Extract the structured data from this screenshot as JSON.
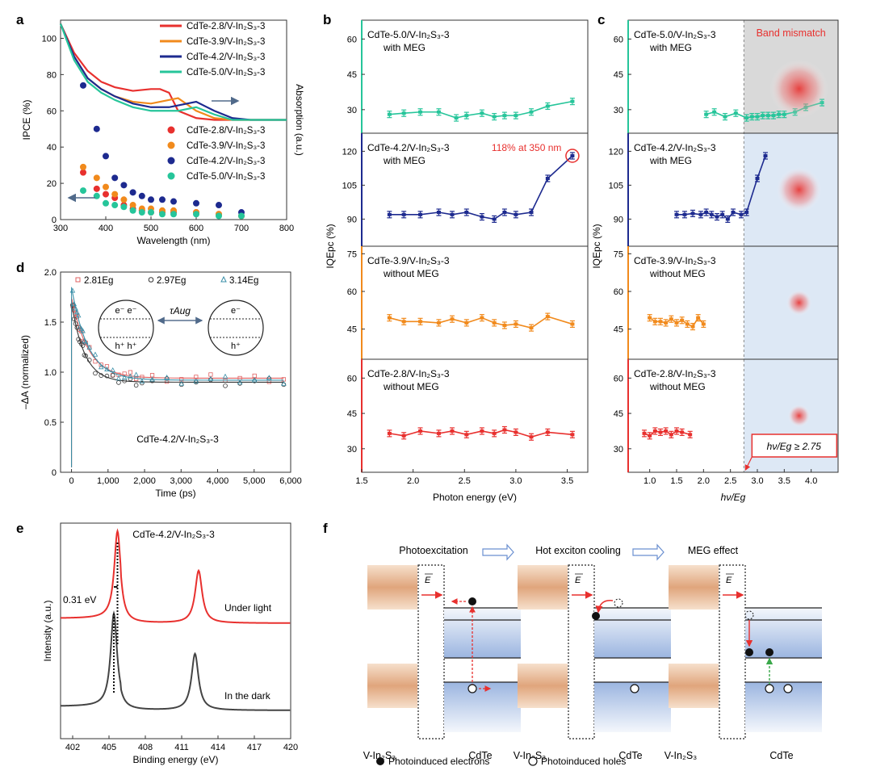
{
  "colors": {
    "red": "#e8302e",
    "orange": "#f18a1c",
    "navy": "#1d2a8f",
    "teal": "#26c59a",
    "gray": "#444444",
    "shade_gray": "#d9d9d9",
    "shade_blue": "#dde8f5",
    "tan": "#e0a57c",
    "band_blue": "#8aa8dc"
  },
  "panel_letters": {
    "a": "a",
    "b": "b",
    "c": "c",
    "d": "d",
    "e": "e",
    "f": "f"
  },
  "chart_data": [
    {
      "panel": "a",
      "type": "scatter+line",
      "xlabel": "Wavelength (nm)",
      "ylabel": "IPCE (%)",
      "ylabel_right": "Absorption (a.u.)",
      "xlim": [
        300,
        800
      ],
      "ylim": [
        0,
        110
      ],
      "xticks": [
        "300",
        "400",
        "500",
        "600",
        "700",
        "800"
      ],
      "yticks": [
        "0",
        "20",
        "40",
        "60",
        "80",
        "100"
      ],
      "legend_lines": [
        "CdTe-2.8/V-In₂S₃-3",
        "CdTe-3.9/V-In₂S₃-3",
        "CdTe-4.2/V-In₂S₃-3",
        "CdTe-5.0/V-In₂S₃-3"
      ],
      "legend_points": [
        "CdTe-2.8/V-In₂S₃-3",
        "CdTe-3.9/V-In₂S₃-3",
        "CdTe-4.2/V-In₂S₃-3",
        "CdTe-5.0/V-In₂S₃-3"
      ],
      "ipce_x": [
        350,
        380,
        400,
        420,
        440,
        460,
        480,
        500,
        525,
        550,
        600,
        650,
        700
      ],
      "ipce_series": [
        {
          "name": "CdTe-2.8",
          "values": [
            26,
            17,
            14,
            12,
            8,
            6,
            5,
            4,
            4,
            4,
            4,
            3,
            2
          ]
        },
        {
          "name": "CdTe-3.9",
          "values": [
            29,
            23,
            18,
            14,
            11,
            8,
            6,
            6,
            5,
            5,
            4,
            3,
            2
          ]
        },
        {
          "name": "CdTe-4.2",
          "values": [
            74,
            50,
            35,
            23,
            19,
            15,
            13,
            11,
            11,
            10,
            9,
            8,
            4
          ]
        },
        {
          "name": "CdTe-5.0",
          "values": [
            16,
            13,
            9,
            8,
            7,
            5,
            4,
            4,
            3,
            3,
            3,
            2,
            2
          ]
        }
      ],
      "absorption_x": [
        300,
        330,
        360,
        390,
        420,
        460,
        500,
        520,
        540,
        560,
        600,
        640,
        680,
        720,
        800
      ],
      "absorption_series": [
        {
          "name": "CdTe-2.8",
          "values": [
            108,
            92,
            82,
            76,
            73,
            71,
            72,
            72,
            70,
            60,
            56,
            55,
            55,
            55,
            55
          ]
        },
        {
          "name": "CdTe-3.9",
          "values": [
            108,
            90,
            78,
            72,
            68,
            65,
            64,
            65,
            66,
            67,
            60,
            56,
            55,
            55,
            55
          ]
        },
        {
          "name": "CdTe-4.2",
          "values": [
            108,
            90,
            78,
            72,
            68,
            64,
            62,
            62,
            62,
            63,
            65,
            60,
            56,
            55,
            55
          ]
        },
        {
          "name": "CdTe-5.0",
          "values": [
            108,
            88,
            76,
            70,
            66,
            62,
            60,
            60,
            60,
            60,
            62,
            58,
            55,
            55,
            55
          ]
        }
      ]
    },
    {
      "panel": "b",
      "type": "line",
      "xlabel": "Photon energy (eV)",
      "ylabel": "IQEpc (%)",
      "xlim": [
        1.5,
        3.7
      ],
      "xticks": [
        "1.5",
        "2.0",
        "2.5",
        "3.0",
        "3.5"
      ],
      "subplots": [
        {
          "label": "CdTe-5.0/V-In₂S₃-3",
          "sub": "with MEG",
          "ylim": [
            20,
            68
          ],
          "yticks": [
            "30",
            "45",
            "60"
          ],
          "x": [
            1.77,
            1.91,
            2.07,
            2.25,
            2.42,
            2.52,
            2.67,
            2.79,
            2.89,
            3.0,
            3.15,
            3.31,
            3.55
          ],
          "values": [
            28,
            28.5,
            29,
            29,
            26.5,
            27.5,
            28.5,
            27,
            27.5,
            27.5,
            29,
            31.5,
            33.5
          ]
        },
        {
          "label": "CdTe-4.2/V-In₂S₃-3",
          "sub": "with MEG",
          "annotation": "118% at 350 nm",
          "ylim": [
            78,
            128
          ],
          "yticks": [
            "90",
            "105",
            "120"
          ],
          "x": [
            1.77,
            1.91,
            2.07,
            2.25,
            2.38,
            2.52,
            2.67,
            2.79,
            2.89,
            3.0,
            3.15,
            3.31,
            3.55
          ],
          "values": [
            92,
            92,
            92,
            93,
            92,
            93,
            91,
            90,
            93,
            92,
            93,
            108,
            118
          ]
        },
        {
          "label": "CdTe-3.9/V-In₂S₃-3",
          "sub": "without MEG",
          "ylim": [
            33,
            78
          ],
          "yticks": [
            "45",
            "60",
            "75"
          ],
          "x": [
            1.77,
            1.91,
            2.07,
            2.25,
            2.38,
            2.52,
            2.67,
            2.79,
            2.89,
            3.0,
            3.15,
            3.31,
            3.55
          ],
          "values": [
            49.5,
            48,
            48,
            47.5,
            49,
            47.5,
            49.5,
            47.5,
            46.5,
            47,
            45.5,
            50,
            47
          ]
        },
        {
          "label": "CdTe-2.8/V-In₂S₃-3",
          "sub": "without MEG",
          "ylim": [
            20,
            68
          ],
          "yticks": [
            "30",
            "45",
            "60"
          ],
          "x": [
            1.77,
            1.91,
            2.07,
            2.25,
            2.38,
            2.52,
            2.67,
            2.79,
            2.89,
            3.0,
            3.15,
            3.31,
            3.55
          ],
          "values": [
            36.5,
            35.5,
            37.5,
            36.5,
            37.5,
            36,
            37.5,
            36.5,
            38,
            37,
            35,
            37,
            36
          ]
        }
      ]
    },
    {
      "panel": "c",
      "type": "line",
      "xlabel": "hν/Eg",
      "ylabel": "IQEpc (%)",
      "xlim": [
        0.6,
        4.5
      ],
      "xticks": [
        "1.0",
        "1.5",
        "2.0",
        "2.5",
        "3.0",
        "3.5",
        "4.0"
      ],
      "threshold": 2.75,
      "band_mismatch": "Band mismatch",
      "threshold_label": "hν/Eg ≥ 2.75",
      "subplots": [
        {
          "label": "CdTe-5.0/V-In₂S₃-3",
          "sub": "with MEG",
          "ylim": [
            20,
            68
          ],
          "yticks": [
            "30",
            "45",
            "60"
          ],
          "x": [
            2.05,
            2.2,
            2.4,
            2.6,
            2.8,
            2.9,
            3.0,
            3.1,
            3.2,
            3.3,
            3.4,
            3.5,
            3.7,
            3.9,
            4.2
          ],
          "values": [
            28,
            29,
            27,
            28.5,
            26.5,
            27,
            27,
            27.5,
            27.5,
            27.5,
            28,
            28,
            29,
            31,
            33
          ]
        },
        {
          "label": "CdTe-4.2/V-In₂S₃-3",
          "sub": "with MEG",
          "ylim": [
            78,
            128
          ],
          "yticks": [
            "90",
            "105",
            "120"
          ],
          "x": [
            1.5,
            1.65,
            1.8,
            1.95,
            2.05,
            2.15,
            2.25,
            2.35,
            2.45,
            2.55,
            2.7,
            2.8,
            3.0,
            3.15
          ],
          "values": [
            92,
            92,
            92.5,
            92,
            93,
            92,
            91,
            92,
            90,
            93,
            92,
            93,
            108,
            118
          ]
        },
        {
          "label": "CdTe-3.9/V-In₂S₃-3",
          "sub": "without MEG",
          "ylim": [
            33,
            78
          ],
          "yticks": [
            "45",
            "60",
            "75"
          ],
          "x": [
            1.0,
            1.1,
            1.2,
            1.3,
            1.4,
            1.5,
            1.6,
            1.7,
            1.8,
            1.9,
            2.0
          ],
          "values": [
            49.5,
            48,
            48,
            47.5,
            49,
            47.5,
            48.5,
            47,
            46,
            49.5,
            47
          ]
        },
        {
          "label": "CdTe-2.8/V-In₂S₃-3",
          "sub": "without MEG",
          "ylim": [
            20,
            68
          ],
          "yticks": [
            "30",
            "45",
            "60"
          ],
          "x": [
            0.9,
            1.0,
            1.1,
            1.2,
            1.3,
            1.4,
            1.5,
            1.6,
            1.75
          ],
          "values": [
            36.5,
            35.5,
            37.5,
            37,
            37.5,
            36,
            37.5,
            37,
            36
          ]
        }
      ]
    },
    {
      "panel": "d",
      "type": "scatter+line",
      "title": "CdTe-4.2/V-In₂S₃-3",
      "xlabel": "Time (ps)",
      "ylabel": "–ΔA (normalized)",
      "xlim": [
        -300,
        6000
      ],
      "ylim": [
        0,
        2.0
      ],
      "xticks": [
        "0",
        "1,000",
        "2,000",
        "3,000",
        "4,000",
        "5,000",
        "6,000"
      ],
      "yticks": [
        "0",
        "0.5",
        "1.0",
        "1.5",
        "2.0"
      ],
      "legend": [
        "2.81Eg",
        "2.97Eg",
        "3.14Eg"
      ],
      "series": [
        {
          "name": "2.81Eg",
          "peak": 1.75,
          "plateau": 0.94
        },
        {
          "name": "2.97Eg",
          "peak": 1.7,
          "plateau": 0.9
        },
        {
          "name": "3.14Eg",
          "peak": 1.85,
          "plateau": 0.92
        }
      ],
      "inset": {
        "tau": "τAug",
        "left_e": "e⁻  e⁻",
        "left_h": "h⁺  h⁺",
        "right_e": "e⁻",
        "right_h": "h⁺"
      }
    },
    {
      "panel": "e",
      "type": "line",
      "title": "CdTe-4.2/V-In₂S₃-3",
      "xlabel": "Binding energy (eV)",
      "ylabel": "Intensity (a.u.)",
      "xlim": [
        401,
        420
      ],
      "xticks": [
        "402",
        "405",
        "408",
        "411",
        "414",
        "417",
        "420"
      ],
      "shift_label": "0.31 eV",
      "series": [
        {
          "name": "Under light",
          "peaks": [
            405.7,
            412.4
          ]
        },
        {
          "name": "In the dark",
          "peaks": [
            405.4,
            412.1
          ]
        }
      ]
    }
  ],
  "panel_f": {
    "steps": [
      "Photoexcitation",
      "Hot exciton cooling",
      "MEG effect"
    ],
    "field": "E",
    "left_material": "V-In₂S₃",
    "right_material": "CdTe",
    "legend_electrons": "Photoinduced electrons",
    "legend_holes": "Photoinduced holes"
  }
}
